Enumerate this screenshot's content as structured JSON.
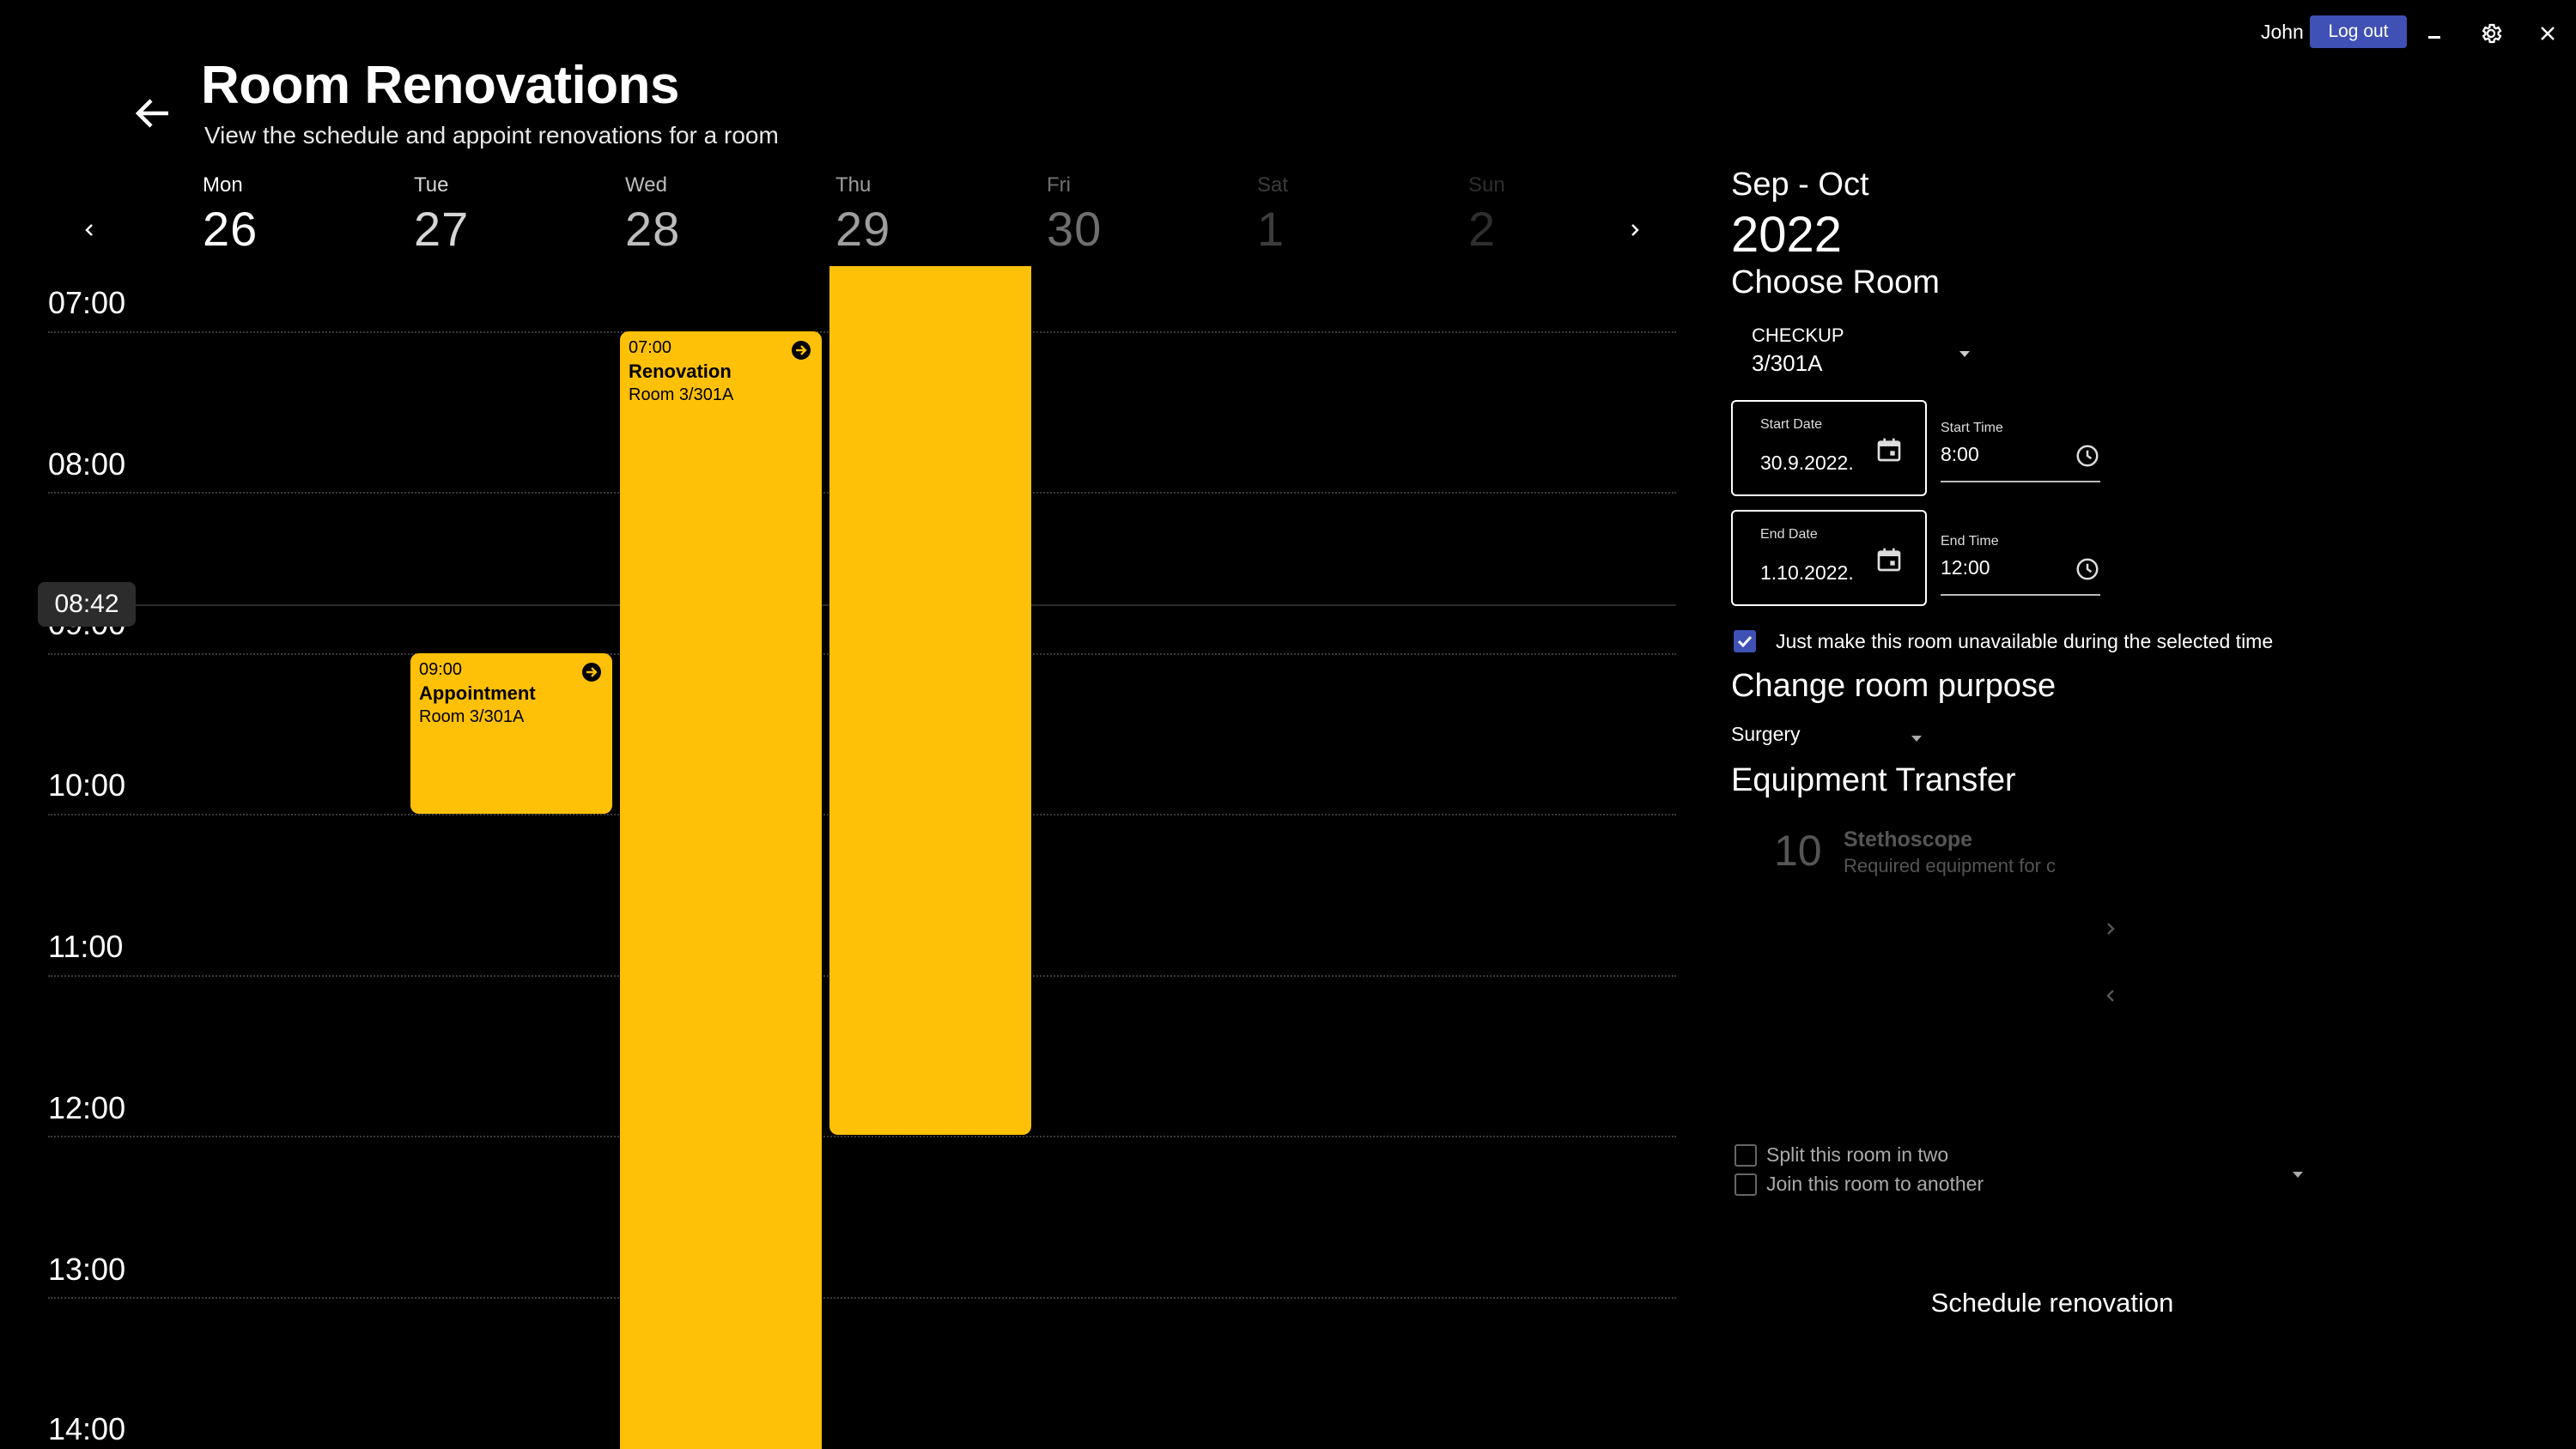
{
  "topbar": {
    "user_name": "John Smith",
    "logout_label": "Log out"
  },
  "header": {
    "title": "Room Renovations",
    "subtitle": "View the schedule and appoint renovations for a room"
  },
  "calendar": {
    "days": [
      {
        "name": "Mon",
        "num": "26",
        "color": "#ffffff"
      },
      {
        "name": "Tue",
        "num": "27",
        "color": "#d6d6d6"
      },
      {
        "name": "Wed",
        "num": "28",
        "color": "#bdbdbd"
      },
      {
        "name": "Thu",
        "num": "29",
        "color": "#9e9e9e"
      },
      {
        "name": "Fri",
        "num": "30",
        "color": "#6f6f6f"
      },
      {
        "name": "Sat",
        "num": "1",
        "color": "#3c3c3c"
      },
      {
        "name": "Sun",
        "num": "2",
        "color": "#2e2e2e"
      }
    ],
    "hours": [
      "07:00",
      "08:00",
      "09:00",
      "10:00",
      "11:00",
      "12:00",
      "13:00",
      "14:00"
    ],
    "now": "08:42",
    "events": [
      {
        "time": "07:00",
        "title": "Renovation",
        "room": "Room 3/301A"
      },
      {
        "time": "09:00",
        "title": "Appointment",
        "room": "Room 3/301A"
      }
    ]
  },
  "panel": {
    "month_range": "Sep - Oct",
    "year": "2022",
    "choose_room_title": "Choose Room",
    "room_category": "CHECKUP",
    "room_value": "3/301A",
    "start_date_label": "Start Date",
    "start_date": "30.9.2022.",
    "start_time_label": "Start Time",
    "start_time": "8:00",
    "end_date_label": "End Date",
    "end_date": "1.10.2022.",
    "end_time_label": "End Time",
    "end_time": "12:00",
    "unavailable_label": "Just make this room unavailable during the selected time",
    "change_purpose_title": "Change room purpose",
    "purpose_value": "Surgery",
    "equipment_title": "Equipment Transfer",
    "equipment": {
      "qty": "10",
      "name": "Stethoscope",
      "desc": "Required equipment for checkups"
    },
    "split_label": "Split this room in two",
    "join_label": "Join this room to another",
    "schedule_label": "Schedule renovation"
  },
  "colors": {
    "accent": "#3f51b5",
    "event": "#ffc107",
    "background": "#000000"
  }
}
